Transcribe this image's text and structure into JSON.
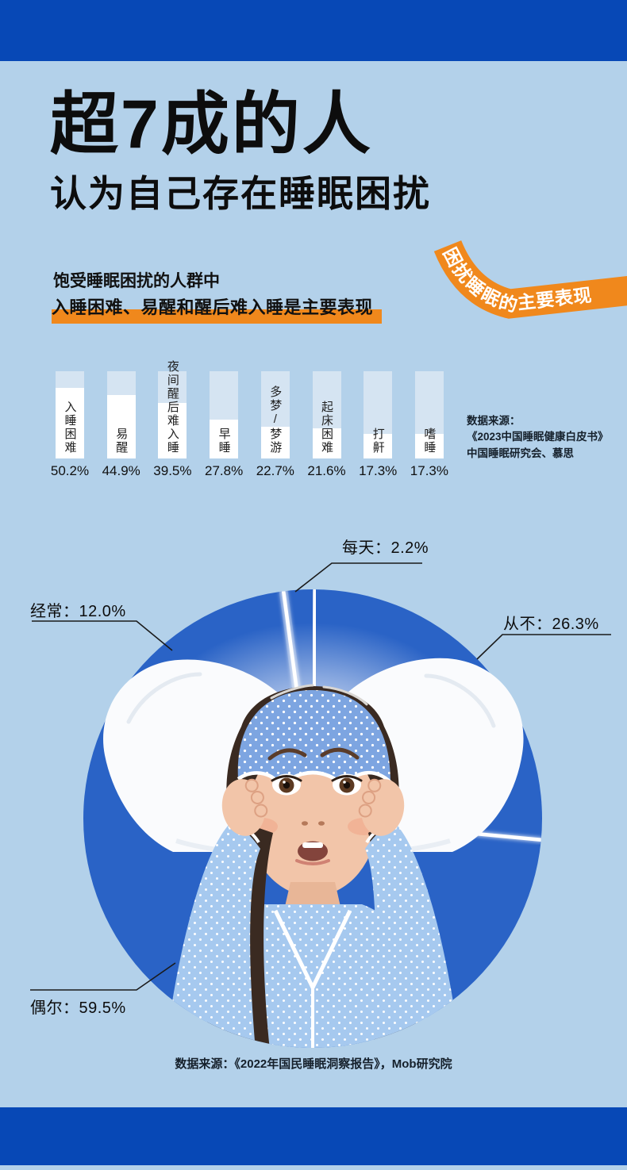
{
  "page": {
    "background_color": "#b3d1ea",
    "band_color": "#0748b6",
    "accent_orange": "#f0881c",
    "pie_blue": "#2a63c6"
  },
  "title": {
    "line1": "超7成的人",
    "line2": "认为自己存在睡眠困扰"
  },
  "intro": {
    "line1": "饱受睡眠困扰的人群中",
    "line2": "入睡困难、易醒和醒后难入睡是主要表现"
  },
  "ribbon": {
    "label": "困扰睡眠的主要表现"
  },
  "bar_chart": {
    "chart_data": {
      "type": "bar",
      "title": "困扰睡眠的主要表现",
      "categories": [
        "入睡困难",
        "易醒",
        "夜间醒后难入睡",
        "早睡",
        "多梦/梦游",
        "起床困难",
        "打鼾",
        "嗜睡"
      ],
      "values": [
        50.2,
        44.9,
        39.5,
        27.8,
        22.7,
        21.6,
        17.3,
        17.3
      ],
      "value_labels": [
        "50.2%",
        "44.9%",
        "39.5%",
        "27.8%",
        "22.7%",
        "21.6%",
        "17.3%",
        "17.3%"
      ],
      "unit": "%",
      "bar_track_color": "#d5e4f2",
      "bar_fill_color": "#ffffff",
      "ylim": [
        0,
        62
      ]
    },
    "source": {
      "line1": "数据来源：",
      "line2": "《2023中国睡眠健康白皮书》",
      "line3": "中国睡眠研究会、慕思"
    }
  },
  "pie_chart": {
    "chart_data": {
      "type": "pie",
      "labels": [
        "每天",
        "经常",
        "从不",
        "偶尔"
      ],
      "values": [
        2.2,
        12.0,
        26.3,
        59.5
      ],
      "unit": "%",
      "color": "#2a63c6",
      "clockwise_order_from_top": [
        "每天",
        "从不",
        "偶尔",
        "经常"
      ],
      "start_angle_deg": -7.3,
      "legend_position": "callouts"
    },
    "callouts": {
      "everyday": "每天：2.2%",
      "often": "经常：12.0%",
      "never": "从不：26.3%",
      "sometimes": "偶尔：59.5%"
    },
    "source": "数据来源：《2022年国民睡眠洞察报告》，Mob研究院"
  }
}
